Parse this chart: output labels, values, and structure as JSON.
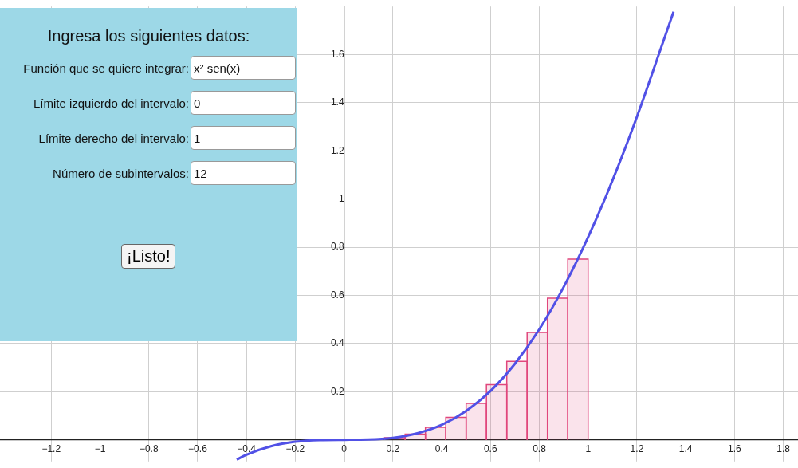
{
  "chart_data": [
    {
      "type": "line",
      "series": [
        {
          "type": "line",
          "color": "#5151e6",
          "x": [
            -0.44,
            -0.4,
            -0.3,
            -0.2,
            -0.1,
            0,
            0.1,
            0.2,
            0.3,
            0.4,
            0.5,
            0.6,
            0.7,
            0.8,
            0.9,
            1,
            1.1,
            1.2,
            1.3,
            1.35
          ],
          "values": [
            -0.082,
            -0.062,
            -0.027,
            -0.008,
            -0.001,
            0,
            0.001,
            0.008,
            0.027,
            0.062,
            0.12,
            0.203,
            0.316,
            0.459,
            0.635,
            0.842,
            1.078,
            1.342,
            1.632,
            1.778
          ]
        },
        {
          "type": "bar",
          "color": "#e0467c",
          "x": [
            0.0417,
            0.125,
            0.2083,
            0.2917,
            0.375,
            0.4583,
            0.5417,
            0.625,
            0.7083,
            0.7917,
            0.875,
            0.9583
          ],
          "values": [
            0,
            null,
            0.009,
            0.024,
            0.052,
            0.093,
            0.151,
            0.229,
            0.326,
            0.446,
            0.588,
            0.751
          ]
        }
      ],
      "xlim": [
        -1.41,
        1.86
      ],
      "ylim": [
        -0.09,
        1.8
      ],
      "xticks": [
        {
          "value": -1.2,
          "label": "−1.2"
        },
        {
          "value": -1,
          "label": "−1"
        },
        {
          "value": -0.8,
          "label": "−0.8"
        },
        {
          "value": -0.6,
          "label": "−0.6"
        },
        {
          "value": -0.4,
          "label": "−0.4"
        },
        {
          "value": -0.2,
          "label": "−0.2"
        },
        0,
        0.2,
        0.4,
        0.6,
        0.8,
        1,
        1.2,
        1.4,
        1.6,
        1.8
      ],
      "yticks": [
        0.2,
        0.4,
        0.6,
        0.8,
        1,
        1.2,
        1.4,
        1.6
      ],
      "grid": true
    },
    {
      "type": "other",
      "title": "Ingresa los siguientes datos:",
      "annotations": [
        "Función que se quiere integrar:",
        "x² sen(x)",
        "Límite izquierdo del intervalo:",
        "0",
        "Límite derecho del intervalo:",
        "1",
        "Número de subintervalos:",
        "12",
        "¡Listo!"
      ]
    }
  ]
}
